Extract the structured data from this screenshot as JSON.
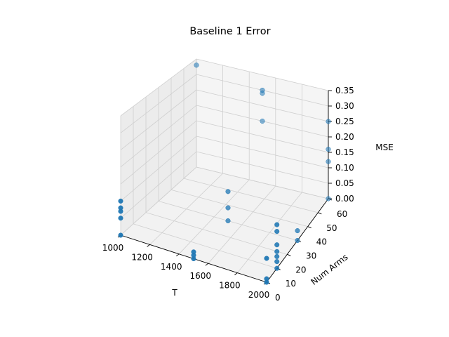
{
  "chart_data": {
    "type": "scatter",
    "projection": "3d",
    "title": "Baseline 1 Error",
    "xlabel": "T",
    "ylabel": "Num Arms",
    "zlabel": "MSE",
    "xlim": [
      1000,
      2000
    ],
    "ylim": [
      0,
      60
    ],
    "zlim": [
      0,
      0.35
    ],
    "xticks": [
      "1000",
      "1200",
      "1400",
      "1600",
      "1800",
      "2000"
    ],
    "yticks": [
      "0",
      "10",
      "20",
      "30",
      "40",
      "50",
      "60"
    ],
    "zticks": [
      "0.00",
      "0.05",
      "0.10",
      "0.15",
      "0.20",
      "0.25",
      "0.30",
      "0.35"
    ],
    "grid": true,
    "marker_color": "#1f77b4",
    "points": [
      {
        "x": 1000,
        "y": 0,
        "z": 0.0
      },
      {
        "x": 1000,
        "y": 0,
        "z": 0.05
      },
      {
        "x": 1000,
        "y": 0,
        "z": 0.07
      },
      {
        "x": 1000,
        "y": 0,
        "z": 0.08
      },
      {
        "x": 1000,
        "y": 0,
        "z": 0.1
      },
      {
        "x": 1000,
        "y": 60,
        "z": 0.33
      },
      {
        "x": 1500,
        "y": 0,
        "z": 0.0
      },
      {
        "x": 1500,
        "y": 0,
        "z": 0.01
      },
      {
        "x": 1500,
        "y": 0,
        "z": 0.02
      },
      {
        "x": 1500,
        "y": 30,
        "z": 0.0
      },
      {
        "x": 1500,
        "y": 30,
        "z": 0.04
      },
      {
        "x": 1500,
        "y": 30,
        "z": 0.09
      },
      {
        "x": 1500,
        "y": 60,
        "z": 0.29
      },
      {
        "x": 1500,
        "y": 60,
        "z": 0.3
      },
      {
        "x": 1500,
        "y": 60,
        "z": 0.2
      },
      {
        "x": 2000,
        "y": 0,
        "z": 0.0
      },
      {
        "x": 2000,
        "y": 0,
        "z": 0.01
      },
      {
        "x": 2000,
        "y": 0,
        "z": 0.07
      },
      {
        "x": 2000,
        "y": 10,
        "z": 0.0
      },
      {
        "x": 2000,
        "y": 10,
        "z": 0.02
      },
      {
        "x": 2000,
        "y": 10,
        "z": 0.035
      },
      {
        "x": 2000,
        "y": 10,
        "z": 0.05
      },
      {
        "x": 2000,
        "y": 10,
        "z": 0.07
      },
      {
        "x": 2000,
        "y": 10,
        "z": 0.11
      },
      {
        "x": 2000,
        "y": 10,
        "z": 0.13
      },
      {
        "x": 2000,
        "y": 30,
        "z": 0.0
      },
      {
        "x": 2000,
        "y": 30,
        "z": 0.03
      },
      {
        "x": 2000,
        "y": 60,
        "z": 0.0
      },
      {
        "x": 2000,
        "y": 60,
        "z": 0.12
      },
      {
        "x": 2000,
        "y": 60,
        "z": 0.16
      },
      {
        "x": 2000,
        "y": 60,
        "z": 0.25
      }
    ]
  }
}
